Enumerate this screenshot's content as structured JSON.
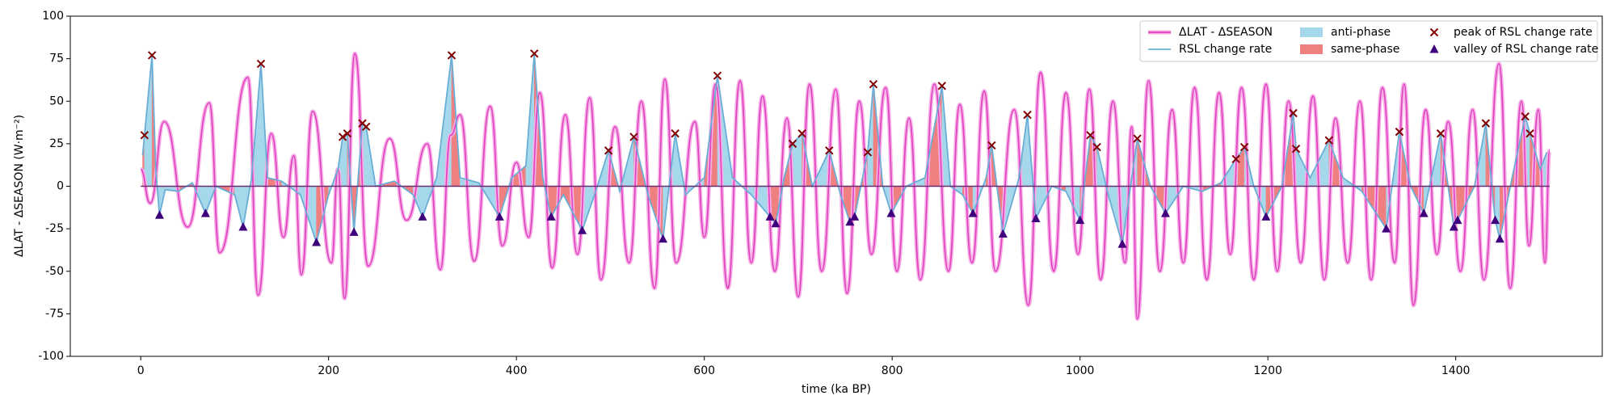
{
  "chart_data": {
    "type": "line",
    "xlabel": "time (ka BP)",
    "ylabel": "ΔLAT - ΔSEASON  (W·m⁻²)",
    "xlim": [
      -75,
      1556
    ],
    "ylim": [
      -100,
      100
    ],
    "xticks": [
      0,
      200,
      400,
      600,
      800,
      1000,
      1200,
      1400
    ],
    "yticks": [
      -100,
      -75,
      -50,
      -25,
      0,
      25,
      50,
      75,
      100
    ],
    "legend": "upper right",
    "series": [
      {
        "name": "ΔLAT - ΔSEASON",
        "color": "#e040c0",
        "x": [
          0,
          10,
          25,
          50,
          73,
          84,
          114,
          125,
          139,
          152,
          163,
          171,
          183,
          203,
          210,
          217,
          228,
          242,
          265,
          283,
          305,
          319,
          330,
          340,
          355,
          372,
          385,
          400,
          413,
          425,
          438,
          452,
          465,
          478,
          490,
          505,
          520,
          533,
          547,
          558,
          570,
          590,
          600,
          612,
          625,
          638,
          650,
          662,
          675,
          688,
          700,
          712,
          725,
          740,
          752,
          765,
          778,
          793,
          805,
          818,
          830,
          845,
          860,
          872,
          885,
          898,
          910,
          930,
          945,
          958,
          972,
          985,
          998,
          1010,
          1022,
          1035,
          1048,
          1055,
          1061,
          1073,
          1085,
          1098,
          1110,
          1122,
          1135,
          1148,
          1160,
          1172,
          1185,
          1198,
          1210,
          1222,
          1235,
          1248,
          1260,
          1272,
          1285,
          1298,
          1310,
          1322,
          1335,
          1345,
          1355,
          1368,
          1380,
          1392,
          1405,
          1418,
          1430,
          1446,
          1458,
          1470,
          1478,
          1488,
          1495,
          1500
        ],
        "values": [
          10,
          -10,
          38,
          -24,
          49,
          -39,
          64,
          -64,
          31,
          -30,
          18,
          -52,
          44,
          -45,
          10,
          -66,
          78,
          -47,
          28,
          -20,
          25,
          -49,
          30,
          42,
          -44,
          47,
          -35,
          14,
          -30,
          55,
          -48,
          42,
          -40,
          52,
          -55,
          35,
          -45,
          50,
          -60,
          63,
          -45,
          38,
          -30,
          60,
          -60,
          62,
          -45,
          53,
          -50,
          40,
          -65,
          60,
          -50,
          57,
          -63,
          50,
          -40,
          58,
          -50,
          40,
          -55,
          60,
          -50,
          48,
          -45,
          56,
          -50,
          45,
          -70,
          67,
          -50,
          55,
          -40,
          57,
          -55,
          50,
          -45,
          35,
          -78,
          62,
          -50,
          45,
          -45,
          58,
          -55,
          55,
          -40,
          58,
          -55,
          60,
          -50,
          50,
          -45,
          53,
          -55,
          40,
          -45,
          50,
          -55,
          58,
          -45,
          60,
          -70,
          45,
          -40,
          38,
          -50,
          45,
          -55,
          72,
          -60,
          50,
          -35,
          45,
          -45,
          21
        ]
      },
      {
        "name": "RSL change rate",
        "color": "#6aaed6",
        "x": [
          2,
          4,
          12,
          16,
          20,
          26,
          40,
          55,
          69,
          80,
          100,
          109,
          118,
          128,
          135,
          150,
          170,
          187,
          200,
          210,
          215,
          220,
          227,
          236,
          240,
          250,
          270,
          290,
          300,
          315,
          331,
          340,
          360,
          382,
          395,
          410,
          419,
          428,
          437,
          450,
          470,
          485,
          498,
          510,
          525,
          540,
          556,
          569,
          580,
          600,
          614,
          630,
          650,
          670,
          676,
          685,
          694,
          704,
          715,
          733,
          745,
          755,
          760,
          774,
          780,
          790,
          799,
          815,
          835,
          853,
          862,
          875,
          886,
          900,
          906,
          918,
          935,
          944,
          953,
          970,
          985,
          1000,
          1011,
          1018,
          1030,
          1045,
          1061,
          1075,
          1091,
          1110,
          1130,
          1150,
          1166,
          1175,
          1185,
          1198,
          1215,
          1227,
          1230,
          1245,
          1265,
          1280,
          1300,
          1326,
          1340,
          1352,
          1366,
          1384,
          1398,
          1402,
          1420,
          1432,
          1442,
          1447,
          1460,
          1474,
          1479,
          1490,
          1497
        ],
        "values": [
          18,
          30,
          77,
          10,
          -17,
          -2,
          -3,
          2,
          -16,
          0,
          -5,
          -24,
          5,
          72,
          5,
          3,
          -5,
          -33,
          -5,
          10,
          29,
          31,
          -27,
          37,
          35,
          0,
          3,
          -5,
          -18,
          5,
          77,
          5,
          2,
          -18,
          5,
          12,
          78,
          5,
          -18,
          -5,
          -26,
          -2,
          21,
          -3,
          29,
          -5,
          -31,
          31,
          -5,
          5,
          65,
          5,
          -5,
          -18,
          -22,
          5,
          25,
          31,
          0,
          21,
          -5,
          -21,
          -18,
          20,
          60,
          0,
          -16,
          0,
          5,
          59,
          0,
          -5,
          -16,
          5,
          24,
          -28,
          5,
          42,
          -19,
          0,
          -3,
          -20,
          30,
          23,
          -5,
          -34,
          28,
          0,
          -16,
          0,
          -3,
          2,
          16,
          23,
          0,
          -18,
          0,
          43,
          22,
          5,
          27,
          5,
          -3,
          -25,
          32,
          0,
          -16,
          31,
          -24,
          -20,
          0,
          37,
          -20,
          -31,
          5,
          41,
          31,
          10,
          20
        ]
      }
    ],
    "fills": [
      {
        "name": "anti-phase",
        "color": "#a6d8ec"
      },
      {
        "name": "same-phase",
        "color": "#f08080"
      }
    ],
    "markers": [
      {
        "name": "peak of RSL change rate",
        "color": "#800000",
        "marker": "x",
        "x": [
          4,
          12,
          128,
          215,
          220,
          236,
          240,
          331,
          419,
          498,
          525,
          569,
          614,
          694,
          704,
          733,
          774,
          780,
          853,
          906,
          944,
          1011,
          1018,
          1061,
          1166,
          1175,
          1227,
          1230,
          1265,
          1340,
          1384,
          1432,
          1474,
          1479
        ],
        "values": [
          30,
          77,
          72,
          29,
          31,
          37,
          35,
          77,
          78,
          21,
          29,
          31,
          65,
          25,
          31,
          21,
          20,
          60,
          59,
          24,
          42,
          30,
          23,
          28,
          16,
          23,
          43,
          22,
          27,
          32,
          31,
          37,
          41,
          31
        ]
      },
      {
        "name": "valley of RSL change rate",
        "color": "#3f007d",
        "marker": "^",
        "x": [
          20,
          69,
          109,
          187,
          227,
          300,
          382,
          437,
          470,
          556,
          670,
          676,
          755,
          760,
          799,
          886,
          918,
          953,
          1000,
          1045,
          1091,
          1198,
          1326,
          1366,
          1398,
          1402,
          1442,
          1447
        ],
        "values": [
          -17,
          -16,
          -24,
          -33,
          -27,
          -18,
          -18,
          -18,
          -26,
          -31,
          -18,
          -22,
          -21,
          -18,
          -16,
          -16,
          -28,
          -19,
          -20,
          -34,
          -16,
          -18,
          -25,
          -16,
          -24,
          -20,
          -20,
          -31
        ]
      }
    ]
  }
}
